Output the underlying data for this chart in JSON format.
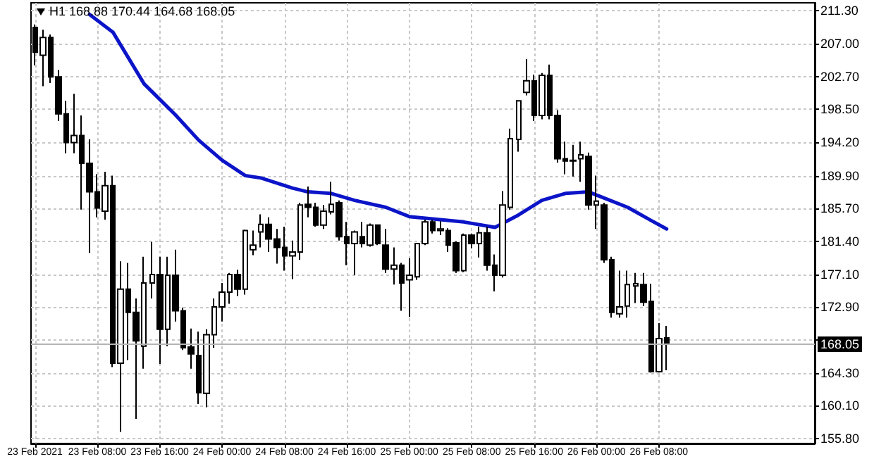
{
  "chart_data": {
    "type": "candlestick",
    "annotations": [
      "H1 168.88 170.44 164.68 168.05"
    ],
    "xlim": [
      "2021-02-22T23:30",
      "2021-02-27T04:00"
    ],
    "xticks": [
      {
        "value": "2021-02-23T00:00",
        "label": "23 Feb 2021"
      },
      {
        "value": "2021-02-23T08:00",
        "label": "23 Feb 08:00"
      },
      {
        "value": "2021-02-23T16:00",
        "label": "23 Feb 16:00"
      },
      {
        "value": "2021-02-24T00:00",
        "label": "24 Feb 00:00"
      },
      {
        "value": "2021-02-24T08:00",
        "label": "24 Feb 08:00"
      },
      {
        "value": "2021-02-24T16:00",
        "label": "24 Feb 16:00"
      },
      {
        "value": "2021-02-25T00:00",
        "label": "25 Feb 00:00"
      },
      {
        "value": "2021-02-25T08:00",
        "label": "25 Feb 08:00"
      },
      {
        "value": "2021-02-25T16:00",
        "label": "25 Feb 16:00"
      },
      {
        "value": "2021-02-26T00:00",
        "label": "26 Feb 00:00"
      },
      {
        "value": "2021-02-26T08:00",
        "label": "26 Feb 08:00"
      }
    ],
    "ylim": [
      155.2,
      212.3
    ],
    "yticks": [
      {
        "value": 211.3,
        "label": "211.30"
      },
      {
        "value": 207.0,
        "label": "207.00"
      },
      {
        "value": 202.7,
        "label": "202.70"
      },
      {
        "value": 198.5,
        "label": "198.50"
      },
      {
        "value": 194.2,
        "label": "194.20"
      },
      {
        "value": 189.9,
        "label": "189.90"
      },
      {
        "value": 185.7,
        "label": "185.70"
      },
      {
        "value": 181.4,
        "label": "181.40"
      },
      {
        "value": 177.1,
        "label": "177.10"
      },
      {
        "value": 172.9,
        "label": "172.90"
      },
      {
        "value": 168.6,
        "label": null
      },
      {
        "value": 164.3,
        "label": "164.30"
      },
      {
        "value": 160.1,
        "label": "160.10"
      },
      {
        "value": 155.8,
        "label": "155.80"
      }
    ],
    "grid": true,
    "ref_lines": [
      {
        "axis": "y",
        "value": 168.05,
        "label": "168.05",
        "color": "#b4b4b4"
      }
    ],
    "series": [
      {
        "color": "#000000",
        "x": [
          "2021-02-23T00:00",
          "2021-02-23T01:00",
          "2021-02-23T02:00",
          "2021-02-23T03:00",
          "2021-02-23T04:00",
          "2021-02-23T05:00",
          "2021-02-23T06:00",
          "2021-02-23T07:00",
          "2021-02-23T08:00",
          "2021-02-23T09:00",
          "2021-02-23T10:00",
          "2021-02-23T11:00",
          "2021-02-23T12:00",
          "2021-02-23T13:00",
          "2021-02-23T14:00",
          "2021-02-23T15:00",
          "2021-02-23T16:00",
          "2021-02-23T17:00",
          "2021-02-23T18:00",
          "2021-02-23T19:00",
          "2021-02-23T20:00",
          "2021-02-23T21:00",
          "2021-02-23T22:00",
          "2021-02-23T23:00",
          "2021-02-24T00:00",
          "2021-02-24T01:00",
          "2021-02-24T02:00",
          "2021-02-24T03:00",
          "2021-02-24T04:00",
          "2021-02-24T05:00",
          "2021-02-24T06:00",
          "2021-02-24T07:00",
          "2021-02-24T08:00",
          "2021-02-24T09:00",
          "2021-02-24T10:00",
          "2021-02-24T11:00",
          "2021-02-24T12:00",
          "2021-02-24T13:00",
          "2021-02-24T14:00",
          "2021-02-24T15:00",
          "2021-02-24T16:00",
          "2021-02-24T17:00",
          "2021-02-24T18:00",
          "2021-02-24T19:00",
          "2021-02-24T20:00",
          "2021-02-24T21:00",
          "2021-02-24T22:00",
          "2021-02-24T23:00",
          "2021-02-25T00:00",
          "2021-02-25T01:00",
          "2021-02-25T02:00",
          "2021-02-25T03:00",
          "2021-02-25T04:00",
          "2021-02-25T05:00",
          "2021-02-25T06:00",
          "2021-02-25T07:00",
          "2021-02-25T08:00",
          "2021-02-25T09:00",
          "2021-02-25T10:00",
          "2021-02-25T11:00",
          "2021-02-25T12:00",
          "2021-02-25T13:00",
          "2021-02-25T14:00",
          "2021-02-25T15:00",
          "2021-02-25T16:00",
          "2021-02-25T17:00",
          "2021-02-25T18:00",
          "2021-02-25T19:00",
          "2021-02-25T20:00",
          "2021-02-25T21:00",
          "2021-02-25T22:00",
          "2021-02-25T23:00",
          "2021-02-26T00:00",
          "2021-02-26T01:00",
          "2021-02-26T02:00",
          "2021-02-26T03:00",
          "2021-02-26T04:00",
          "2021-02-26T05:00",
          "2021-02-26T06:00",
          "2021-02-26T07:00",
          "2021-02-26T08:00",
          "2021-02-26T09:00"
        ],
        "ohlc": [
          [
            209.1,
            209.5,
            204.2,
            205.9
          ],
          [
            205.5,
            208.8,
            201.5,
            207.8
          ],
          [
            207.8,
            208.2,
            201.9,
            202.7
          ],
          [
            202.7,
            203.6,
            197.0,
            197.9
          ],
          [
            197.9,
            199.6,
            192.8,
            194.2
          ],
          [
            194.2,
            200.5,
            192.8,
            195.1
          ],
          [
            195.1,
            197.7,
            185.5,
            191.5
          ],
          [
            191.5,
            194.6,
            179.9,
            187.8
          ],
          [
            187.8,
            190.1,
            184.5,
            185.7
          ],
          [
            185.3,
            190.4,
            184.2,
            188.6
          ],
          [
            188.6,
            189.9,
            165.1,
            165.6
          ],
          [
            165.6,
            178.8,
            156.7,
            175.2
          ],
          [
            175.2,
            178.6,
            166.0,
            172.2
          ],
          [
            172.2,
            174.0,
            158.4,
            168.5
          ],
          [
            167.8,
            179.4,
            164.9,
            176.0
          ],
          [
            176.0,
            181.3,
            174.0,
            177.1
          ],
          [
            177.1,
            179.4,
            165.5,
            170.0
          ],
          [
            170.0,
            179.4,
            167.8,
            177.0
          ],
          [
            177.0,
            180.3,
            171.0,
            172.4
          ],
          [
            172.4,
            172.8,
            167.3,
            167.6
          ],
          [
            167.7,
            170.1,
            164.9,
            166.8
          ],
          [
            166.6,
            169.7,
            160.3,
            161.8
          ],
          [
            161.7,
            170.0,
            159.9,
            169.3
          ],
          [
            169.3,
            174.0,
            167.6,
            172.9
          ],
          [
            172.9,
            176.0,
            171.0,
            174.8
          ],
          [
            174.8,
            177.3,
            173.3,
            177.1
          ],
          [
            177.1,
            177.7,
            174.3,
            175.2
          ],
          [
            175.2,
            182.9,
            174.5,
            182.8
          ],
          [
            180.3,
            182.8,
            179.6,
            180.9
          ],
          [
            182.6,
            184.9,
            180.6,
            183.6
          ],
          [
            183.6,
            184.5,
            180.0,
            181.7
          ],
          [
            181.7,
            183.0,
            178.5,
            180.6
          ],
          [
            180.6,
            183.3,
            177.6,
            179.5
          ],
          [
            179.5,
            181.5,
            176.5,
            180.0
          ],
          [
            180.0,
            186.4,
            179.0,
            186.1
          ],
          [
            186.2,
            188.5,
            184.5,
            185.8
          ],
          [
            185.8,
            186.4,
            183.3,
            183.5
          ],
          [
            183.5,
            186.1,
            183.0,
            185.3
          ],
          [
            185.2,
            189.1,
            184.9,
            186.2
          ],
          [
            186.4,
            186.7,
            181.5,
            182.0
          ],
          [
            182.0,
            183.9,
            178.3,
            181.1
          ],
          [
            181.1,
            182.8,
            177.0,
            182.6
          ],
          [
            182.0,
            183.9,
            180.6,
            181.1
          ],
          [
            180.9,
            183.7,
            180.7,
            183.5
          ],
          [
            183.5,
            183.6,
            180.9,
            181.1
          ],
          [
            180.9,
            183.0,
            177.3,
            177.8
          ],
          [
            177.8,
            180.6,
            175.8,
            178.3
          ],
          [
            178.3,
            178.6,
            172.4,
            176.0
          ],
          [
            176.4,
            179.2,
            171.6,
            177.0
          ],
          [
            176.8,
            181.2,
            176.4,
            181.1
          ],
          [
            181.1,
            184.2,
            180.9,
            183.9
          ],
          [
            183.9,
            184.2,
            182.4,
            182.8
          ],
          [
            182.8,
            184.0,
            182.2,
            183.0
          ],
          [
            182.8,
            183.1,
            180.0,
            180.9
          ],
          [
            181.2,
            181.4,
            177.3,
            177.6
          ],
          [
            177.6,
            182.4,
            177.4,
            182.2
          ],
          [
            182.2,
            182.4,
            180.5,
            181.1
          ],
          [
            181.1,
            183.3,
            179.3,
            182.5
          ],
          [
            182.5,
            183.3,
            177.6,
            178.3
          ],
          [
            178.3,
            179.7,
            174.9,
            177.0
          ],
          [
            177.0,
            187.9,
            176.7,
            186.1
          ],
          [
            185.8,
            196.0,
            185.5,
            194.7
          ],
          [
            194.6,
            199.7,
            193.0,
            199.6
          ],
          [
            200.7,
            205.0,
            200.3,
            202.2
          ],
          [
            202.2,
            203.0,
            197.0,
            197.7
          ],
          [
            197.7,
            203.2,
            197.2,
            202.9
          ],
          [
            202.9,
            204.3,
            197.2,
            197.7
          ],
          [
            197.7,
            198.4,
            191.6,
            192.1
          ],
          [
            192.1,
            194.3,
            190.1,
            191.8
          ],
          [
            191.9,
            193.9,
            189.8,
            191.8
          ],
          [
            192.1,
            194.3,
            189.1,
            192.6
          ],
          [
            192.4,
            192.9,
            185.5,
            186.1
          ],
          [
            186.1,
            189.9,
            183.0,
            186.6
          ],
          [
            186.1,
            186.4,
            178.6,
            179.0
          ],
          [
            179.0,
            179.4,
            171.5,
            172.2
          ],
          [
            172.0,
            177.6,
            171.5,
            172.9
          ],
          [
            173.0,
            177.6,
            171.5,
            175.8
          ],
          [
            175.6,
            177.3,
            173.4,
            175.9
          ],
          [
            175.8,
            177.3,
            173.0,
            173.5
          ],
          [
            173.6,
            175.9,
            164.4,
            164.5
          ],
          [
            164.5,
            170.8,
            164.4,
            168.8
          ],
          [
            168.88,
            170.44,
            164.68,
            168.05
          ]
        ]
      },
      {
        "type": "line",
        "color": "#0c14c8",
        "x": [
          "2021-02-23T07:00",
          "2021-02-23T10:00",
          "2021-02-23T14:00",
          "2021-02-23T18:00",
          "2021-02-23T21:00",
          "2021-02-24T00:00",
          "2021-02-24T03:00",
          "2021-02-24T05:00",
          "2021-02-24T09:00",
          "2021-02-24T11:00",
          "2021-02-24T14:00",
          "2021-02-24T17:00",
          "2021-02-24T21:00",
          "2021-02-25T00:00",
          "2021-02-25T03:00",
          "2021-02-25T07:00",
          "2021-02-25T11:00",
          "2021-02-25T14:00",
          "2021-02-25T17:00",
          "2021-02-25T20:00",
          "2021-02-25T23:00",
          "2021-02-26T01:00",
          "2021-02-26T04:00",
          "2021-02-26T07:00",
          "2021-02-26T09:00"
        ],
        "values": [
          210.8,
          208.5,
          201.8,
          197.8,
          194.5,
          191.9,
          189.9,
          189.6,
          188.3,
          187.8,
          187.6,
          186.7,
          185.8,
          184.6,
          184.3,
          183.9,
          183.2,
          184.8,
          186.7,
          187.6,
          187.8,
          187.0,
          185.8,
          184.1,
          183.0
        ]
      }
    ]
  }
}
